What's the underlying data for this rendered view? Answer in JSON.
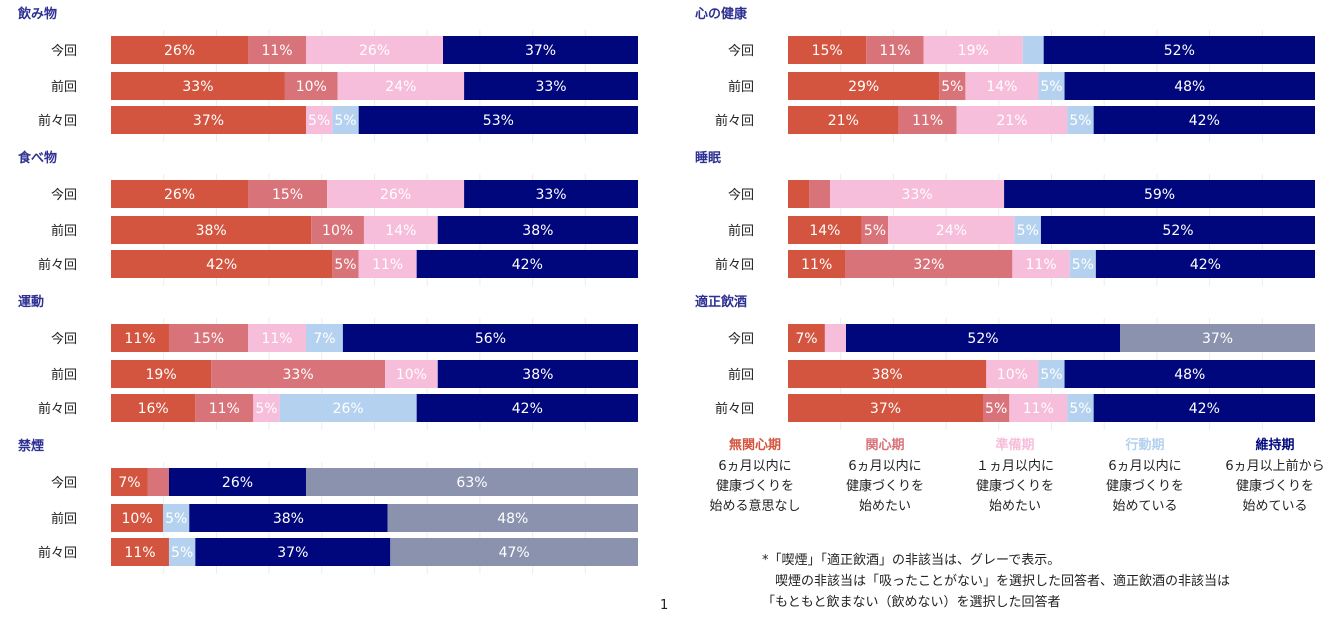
{
  "colors": {
    "mukanshin": "#D3553F",
    "kanshin": "#D9737A",
    "junbi": "#F7BEDB",
    "kodo": "#B4D2EF",
    "iji": "#00077D",
    "higaito": "#8A92AD"
  },
  "row_labels": [
    "今回",
    "前回",
    "前々回"
  ],
  "chart_data": [
    {
      "type": "bar",
      "title": "飲み物",
      "categories": [
        "今回",
        "前回",
        "前々回"
      ],
      "series": [
        {
          "name": "無関心期",
          "values": [
            26,
            33,
            37
          ]
        },
        {
          "name": "関心期",
          "values": [
            11,
            10,
            0
          ]
        },
        {
          "name": "準備期",
          "values": [
            26,
            24,
            5
          ]
        },
        {
          "name": "行動期",
          "values": [
            0,
            0,
            5
          ]
        },
        {
          "name": "維持期",
          "values": [
            37,
            33,
            53
          ]
        }
      ]
    },
    {
      "type": "bar",
      "title": "食べ物",
      "categories": [
        "今回",
        "前回",
        "前々回"
      ],
      "series": [
        {
          "name": "無関心期",
          "values": [
            26,
            38,
            42
          ]
        },
        {
          "name": "関心期",
          "values": [
            15,
            10,
            5
          ]
        },
        {
          "name": "準備期",
          "values": [
            26,
            14,
            11
          ]
        },
        {
          "name": "行動期",
          "values": [
            0,
            0,
            0
          ]
        },
        {
          "name": "維持期",
          "values": [
            33,
            38,
            42
          ]
        }
      ]
    },
    {
      "type": "bar",
      "title": "運動",
      "categories": [
        "今回",
        "前回",
        "前々回"
      ],
      "series": [
        {
          "name": "無関心期",
          "values": [
            11,
            19,
            16
          ]
        },
        {
          "name": "関心期",
          "values": [
            15,
            33,
            11
          ]
        },
        {
          "name": "準備期",
          "values": [
            11,
            10,
            5
          ]
        },
        {
          "name": "行動期",
          "values": [
            7,
            0,
            26
          ]
        },
        {
          "name": "維持期",
          "values": [
            56,
            38,
            42
          ]
        }
      ]
    },
    {
      "type": "bar",
      "title": "禁煙",
      "categories": [
        "今回",
        "前回",
        "前々回"
      ],
      "series": [
        {
          "name": "無関心期",
          "values": [
            7,
            10,
            11
          ]
        },
        {
          "name": "関心期",
          "values": [
            4,
            0,
            0
          ]
        },
        {
          "name": "準備期",
          "values": [
            0,
            0,
            0
          ]
        },
        {
          "name": "行動期",
          "values": [
            0,
            5,
            5
          ]
        },
        {
          "name": "維持期",
          "values": [
            26,
            38,
            37
          ]
        },
        {
          "name": "非該当",
          "values": [
            63,
            48,
            47
          ]
        }
      ]
    },
    {
      "type": "bar",
      "title": "心の健康",
      "categories": [
        "今回",
        "前回",
        "前々回"
      ],
      "series": [
        {
          "name": "無関心期",
          "values": [
            15,
            29,
            21
          ]
        },
        {
          "name": "関心期",
          "values": [
            11,
            5,
            11
          ]
        },
        {
          "name": "準備期",
          "values": [
            19,
            14,
            21
          ]
        },
        {
          "name": "行動期",
          "values": [
            4,
            5,
            5
          ]
        },
        {
          "name": "維持期",
          "values": [
            52,
            48,
            42
          ]
        }
      ]
    },
    {
      "type": "bar",
      "title": "睡眠",
      "categories": [
        "今回",
        "前回",
        "前々回"
      ],
      "series": [
        {
          "name": "無関心期",
          "values": [
            4,
            14,
            11
          ]
        },
        {
          "name": "関心期",
          "values": [
            4,
            5,
            32
          ]
        },
        {
          "name": "準備期",
          "values": [
            33,
            24,
            11
          ]
        },
        {
          "name": "行動期",
          "values": [
            0,
            5,
            5
          ]
        },
        {
          "name": "維持期",
          "values": [
            59,
            52,
            42
          ]
        }
      ]
    },
    {
      "type": "bar",
      "title": "適正飲酒",
      "categories": [
        "今回",
        "前回",
        "前々回"
      ],
      "series": [
        {
          "name": "無関心期",
          "values": [
            7,
            38,
            37
          ]
        },
        {
          "name": "関心期",
          "values": [
            0,
            0,
            5
          ]
        },
        {
          "name": "準備期",
          "values": [
            4,
            10,
            11
          ]
        },
        {
          "name": "行動期",
          "values": [
            0,
            5,
            5
          ]
        },
        {
          "name": "維持期",
          "values": [
            52,
            48,
            42
          ]
        },
        {
          "name": "非該当",
          "values": [
            37,
            0,
            0
          ]
        }
      ]
    }
  ],
  "legend": [
    {
      "name": "無関心期",
      "color": "#D3553F",
      "desc": "6ヵ月以内に\n健康づくりを\n始める意思なし"
    },
    {
      "name": "関心期",
      "color": "#D9737A",
      "desc": "6ヵ月以内に\n健康づくりを\n始めたい"
    },
    {
      "name": "準備期",
      "color": "#F7BEDB",
      "desc": "１ヵ月以内に\n健康づくりを\n始めたい"
    },
    {
      "name": "行動期",
      "color": "#B4D2EF",
      "desc": "6ヵ月以内に\n健康づくりを\n始めている"
    },
    {
      "name": "維持期",
      "color": "#00077D",
      "desc": "6ヵ月以上前から\n健康づくりを\n始めている"
    }
  ],
  "note": {
    "line1": "*「喫煙」「適正飲酒」の非該当は、グレーで表示。",
    "line2": "　喫煙の非該当は「吸ったことがない」を選択した回答者、適正飲酒の非該当は",
    "line3": "「もともと飲まない（飲めない）を選択した回答者"
  },
  "page_number": "1"
}
